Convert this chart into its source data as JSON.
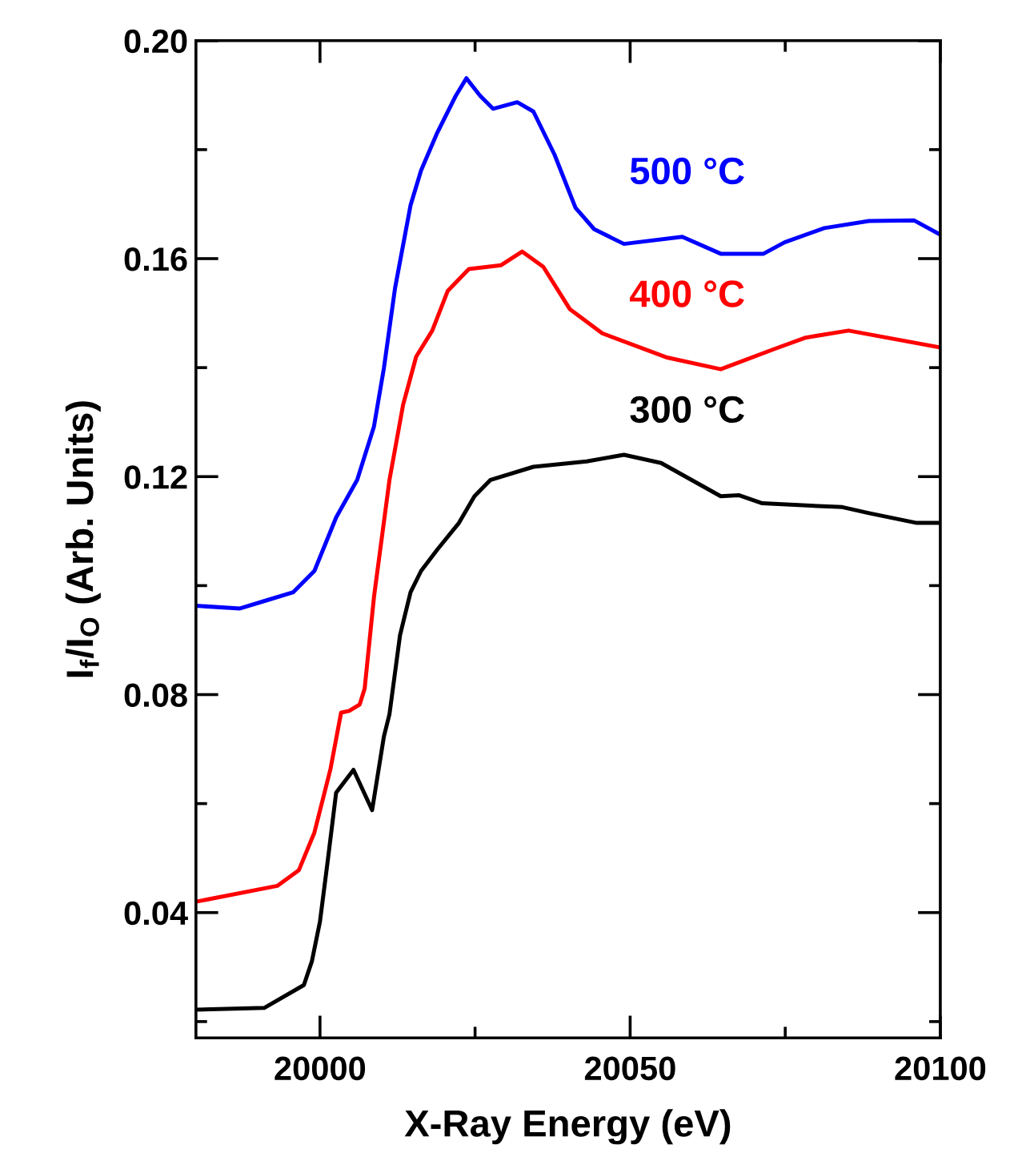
{
  "chart_data": {
    "type": "line",
    "xlabel": "X-Ray Energy (eV)",
    "ylabel": "I$_{f}$/I$_{O}$ (Arb. Units)",
    "xlim": [
      19980,
      20100
    ],
    "ylim": [
      0.017,
      0.2
    ],
    "xticks": [
      20000,
      {
        "value": 20025,
        "label": null
      },
      20050,
      {
        "value": 20075,
        "label": null
      },
      20100
    ],
    "yticks": [
      {
        "value": 0.02,
        "label": null
      },
      0.04,
      {
        "value": 0.06,
        "label": null
      },
      0.08,
      {
        "value": 0.1,
        "label": null
      },
      0.12,
      {
        "value": 0.14,
        "label": null
      },
      0.16,
      {
        "value": 0.18,
        "label": null
      },
      {
        "value": 0.2,
        "label": "0.20"
      }
    ],
    "grid": false,
    "legend": false,
    "marker": "none",
    "line_style": "solid",
    "series": [
      {
        "name": "300 °C",
        "color": "#000000",
        "x": [
          19980,
          19991,
          19997.4,
          19998.7,
          20000,
          20001.3,
          20002.6,
          20005.4,
          20008.4,
          20010.3,
          20011.2,
          20012.9,
          20014.6,
          20016.3,
          20018.9,
          20022.4,
          20024.9,
          20027.5,
          20034.4,
          20043,
          20049,
          20055,
          20064.6,
          20067.5,
          20071.3,
          20084.2,
          20088.5,
          20096.2,
          20100
        ],
        "values": [
          0.0222,
          0.0225,
          0.0267,
          0.0311,
          0.0384,
          0.05,
          0.062,
          0.0662,
          0.0588,
          0.0723,
          0.0764,
          0.0909,
          0.0988,
          0.1027,
          0.1066,
          0.1115,
          0.1164,
          0.1194,
          0.1218,
          0.1228,
          0.124,
          0.1225,
          0.1164,
          0.1166,
          0.1151,
          0.1144,
          0.1133,
          0.1115,
          0.1115
        ]
      },
      {
        "name": "400 °C",
        "color": "#ff0000",
        "x": [
          19980,
          19993.1,
          19996.6,
          19999.1,
          20001.7,
          20003.4,
          20004.7,
          20006.4,
          20007.2,
          20008.7,
          20011.2,
          20013.4,
          20015.5,
          20018.1,
          20020.6,
          20024,
          20029.2,
          20032.6,
          20036,
          20040.3,
          20045.5,
          20055.8,
          20064.6,
          20073.2,
          20078.3,
          20085.2,
          20100
        ],
        "values": [
          0.042,
          0.0449,
          0.0478,
          0.0547,
          0.0664,
          0.0767,
          0.077,
          0.0782,
          0.0811,
          0.0979,
          0.1194,
          0.1332,
          0.142,
          0.1468,
          0.1541,
          0.1581,
          0.1588,
          0.1613,
          0.1585,
          0.1507,
          0.1463,
          0.1419,
          0.1397,
          0.1434,
          0.1455,
          0.1468,
          0.1437
        ]
      },
      {
        "name": "500 °C",
        "color": "#0000ff",
        "x": [
          19980,
          19987.1,
          19991.4,
          19995.7,
          19999.1,
          20002.6,
          20006,
          20008.7,
          20010.3,
          20012.1,
          20014.6,
          20016.3,
          20018.9,
          20021.9,
          20023.6,
          20025.8,
          20027.9,
          20031.8,
          20034.4,
          20037.8,
          20041.2,
          20044.2,
          20049,
          20058.4,
          20064.6,
          20071.5,
          20074.9,
          20081.3,
          20088.5,
          20095.8,
          20100
        ],
        "values": [
          0.0963,
          0.0958,
          0.0973,
          0.0988,
          0.1027,
          0.1125,
          0.1194,
          0.1292,
          0.1399,
          0.1546,
          0.1698,
          0.1762,
          0.1831,
          0.1899,
          0.1931,
          0.1899,
          0.1875,
          0.1887,
          0.187,
          0.1791,
          0.1693,
          0.1654,
          0.1627,
          0.164,
          0.1609,
          0.1609,
          0.163,
          0.1656,
          0.1669,
          0.167,
          0.1644
        ]
      }
    ]
  }
}
